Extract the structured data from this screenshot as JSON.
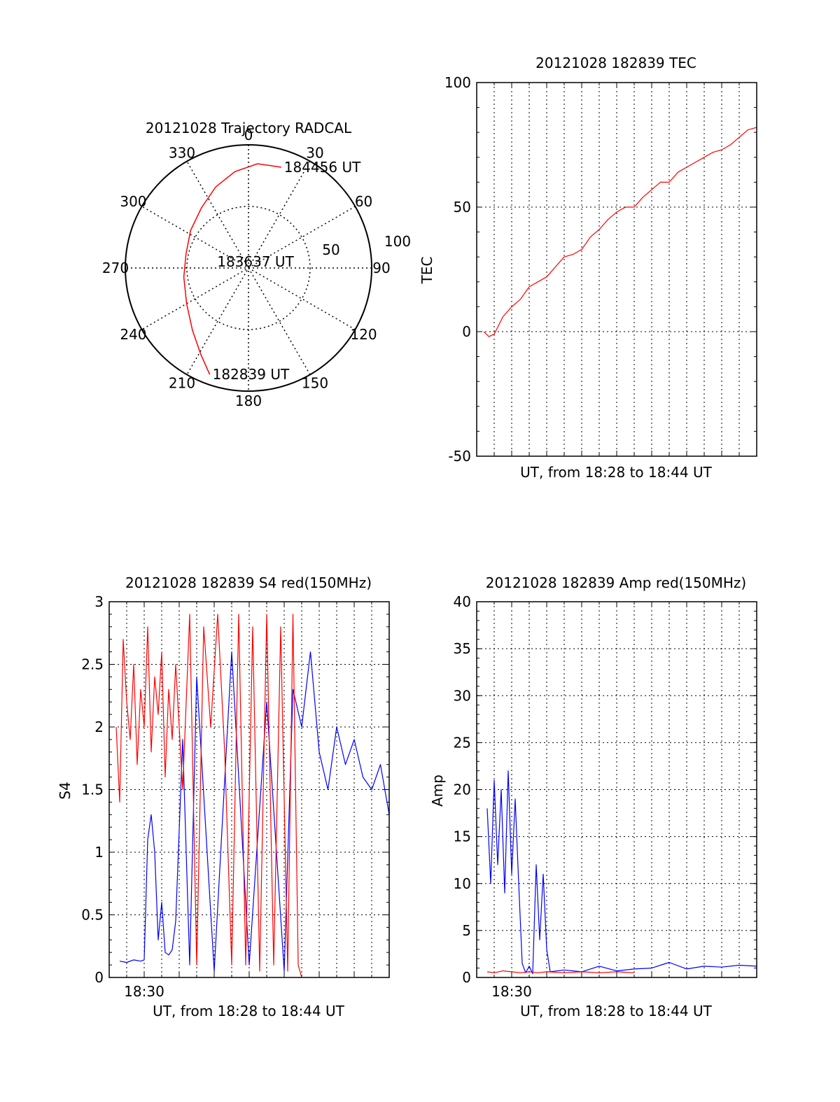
{
  "colors": {
    "red": "#ff0000",
    "blue": "#0000ff",
    "axis": "#000000",
    "grid": "#000000"
  },
  "chart_data": [
    {
      "id": "polar",
      "type": "polar-trajectory",
      "title": "20121028 Trajectory RADCAL",
      "azimuth_labels": [
        "0",
        "30",
        "60",
        "90",
        "120",
        "150",
        "180",
        "210",
        "240",
        "270",
        "300",
        "330"
      ],
      "radial_labels": [
        "50",
        "100"
      ],
      "rmax": 100,
      "grid": true,
      "annotations": [
        {
          "text": "184456 UT",
          "az": 18,
          "r": 86
        },
        {
          "text": "183637 UT",
          "az": 0,
          "r": 0
        },
        {
          "text": "182839 UT",
          "az": 200,
          "r": 92
        }
      ],
      "series": [
        {
          "color": "red",
          "points": [
            {
              "az": 200.0,
              "r": 92
            },
            {
              "az": 209.0,
              "r": 80
            },
            {
              "az": 222.0,
              "r": 68
            },
            {
              "az": 240.0,
              "r": 58
            },
            {
              "az": 262.0,
              "r": 53
            },
            {
              "az": 283.0,
              "r": 52
            },
            {
              "az": 303.0,
              "r": 56
            },
            {
              "az": 322.0,
              "r": 62
            },
            {
              "az": 338.0,
              "r": 71
            },
            {
              "az": 352.0,
              "r": 79
            },
            {
              "az": 5.0,
              "r": 85
            },
            {
              "az": 18.0,
              "r": 86
            }
          ]
        }
      ]
    },
    {
      "id": "tec",
      "type": "line",
      "title": "20121028 182839 TEC",
      "ylabel": "TEC",
      "xlabel": "UT, from 18:28 to 18:44 UT",
      "xlim": [
        0,
        16
      ],
      "ylim": [
        -50,
        100
      ],
      "yticks": [
        "-50",
        "0",
        "50",
        "100"
      ],
      "grid": true,
      "series": [
        {
          "color": "red",
          "x": [
            0.4,
            0.7,
            1.0,
            1.5,
            2.0,
            2.5,
            3.0,
            3.5,
            4.0,
            4.5,
            5.0,
            5.5,
            6.0,
            6.5,
            7.0,
            7.5,
            8.0,
            8.5,
            9.0,
            9.5,
            10.0,
            10.5,
            11.0,
            11.5,
            12.0,
            12.5,
            13.0,
            13.5,
            14.0,
            14.5,
            15.0,
            15.5,
            16.0
          ],
          "y": [
            0,
            -2,
            -1,
            6,
            10,
            13,
            18,
            20,
            22,
            26,
            30,
            31,
            33,
            38,
            41,
            45,
            48,
            50,
            50,
            54,
            57,
            60,
            60,
            64,
            66,
            68,
            70,
            72,
            73,
            75,
            78,
            81,
            82
          ]
        }
      ]
    },
    {
      "id": "s4",
      "type": "line",
      "title": "20121028 182839 S4 red(150MHz)",
      "ylabel": "S4",
      "xlabel": "UT, from 18:28 to 18:44 UT",
      "xtick_label": "18:30",
      "xtick_value": 2,
      "xlim": [
        0,
        16
      ],
      "ylim": [
        0,
        3
      ],
      "yticks": [
        "0",
        "0.5",
        "1",
        "1.5",
        "2",
        "2.5",
        "3"
      ],
      "grid": true,
      "series": [
        {
          "color": "blue",
          "x": [
            0.6,
            1.0,
            1.4,
            1.8,
            2.0,
            2.2,
            2.4,
            2.6,
            2.8,
            3.0,
            3.2,
            3.4,
            3.6,
            3.8,
            4.2,
            4.6,
            5.0,
            6.0,
            7.0,
            8.0,
            9.0,
            10.0,
            10.5,
            11.0,
            11.5,
            12.0,
            12.5,
            13.0,
            13.5,
            14.0,
            14.5,
            15.0,
            15.5,
            16.0
          ],
          "y": [
            0.13,
            0.12,
            0.14,
            0.13,
            0.14,
            1.1,
            1.3,
            1.0,
            0.3,
            0.6,
            0.2,
            0.18,
            0.22,
            0.45,
            1.9,
            0.1,
            2.4,
            0.05,
            2.6,
            0.1,
            2.2,
            0.05,
            2.3,
            2.0,
            2.6,
            1.8,
            1.5,
            2.0,
            1.7,
            1.9,
            1.6,
            1.5,
            1.7,
            1.3
          ]
        },
        {
          "color": "red",
          "x": [
            0.4,
            0.6,
            0.8,
            1.0,
            1.2,
            1.4,
            1.6,
            1.8,
            2.0,
            2.2,
            2.4,
            2.6,
            2.8,
            3.0,
            3.2,
            3.4,
            3.6,
            3.8,
            4.2,
            4.6,
            5.0,
            5.4,
            5.8,
            6.2,
            6.6,
            7.0,
            7.4,
            7.8,
            8.2,
            8.6,
            9.0,
            9.4,
            9.8,
            10.2,
            10.5,
            10.8,
            11.0
          ],
          "y": [
            2.0,
            1.4,
            2.7,
            2.2,
            1.9,
            2.5,
            1.7,
            2.3,
            2.0,
            2.8,
            1.8,
            2.4,
            2.1,
            2.6,
            1.6,
            2.3,
            1.9,
            2.5,
            1.5,
            2.9,
            0.1,
            2.8,
            2.0,
            2.9,
            1.8,
            0.1,
            2.9,
            0.1,
            2.8,
            0.05,
            2.9,
            0.1,
            2.8,
            0.05,
            2.9,
            0.1,
            0.0
          ]
        }
      ]
    },
    {
      "id": "amp",
      "type": "line",
      "title": "20121028 182839 Amp red(150MHz)",
      "ylabel": "Amp",
      "xlabel": "UT, from 18:28 to 18:44 UT",
      "xtick_label": "18:30",
      "xtick_value": 2,
      "xlim": [
        0,
        16
      ],
      "ylim": [
        0,
        40
      ],
      "yticks": [
        "0",
        "5",
        "10",
        "15",
        "20",
        "25",
        "30",
        "35",
        "40"
      ],
      "grid": true,
      "series": [
        {
          "color": "blue",
          "x": [
            0.6,
            0.8,
            1.0,
            1.2,
            1.4,
            1.6,
            1.8,
            2.0,
            2.2,
            2.4,
            2.6,
            2.8,
            3.0,
            3.2,
            3.4,
            3.6,
            3.8,
            4.0,
            4.2,
            5.0,
            6.0,
            7.0,
            8.0,
            9.0,
            10.0,
            11.0,
            12.0,
            13.0,
            14.0,
            15.0,
            16.0
          ],
          "y": [
            18,
            10,
            21,
            12,
            20,
            9,
            22,
            11,
            19,
            10,
            1.5,
            0.5,
            1.2,
            0.4,
            12,
            4,
            11,
            3,
            0.6,
            0.8,
            0.6,
            1.2,
            0.7,
            0.9,
            1.0,
            1.6,
            0.9,
            1.2,
            1.1,
            1.3,
            1.2
          ]
        },
        {
          "color": "red",
          "x": [
            0.6,
            1.0,
            1.5,
            2.0,
            2.5,
            3.0,
            3.5,
            4.0,
            5.0,
            6.0,
            7.0,
            8.0,
            9.0
          ],
          "y": [
            0.6,
            0.5,
            0.7,
            0.6,
            0.5,
            0.6,
            0.5,
            0.6,
            0.5,
            0.6,
            0.5,
            0.6,
            0.5
          ]
        }
      ]
    }
  ]
}
